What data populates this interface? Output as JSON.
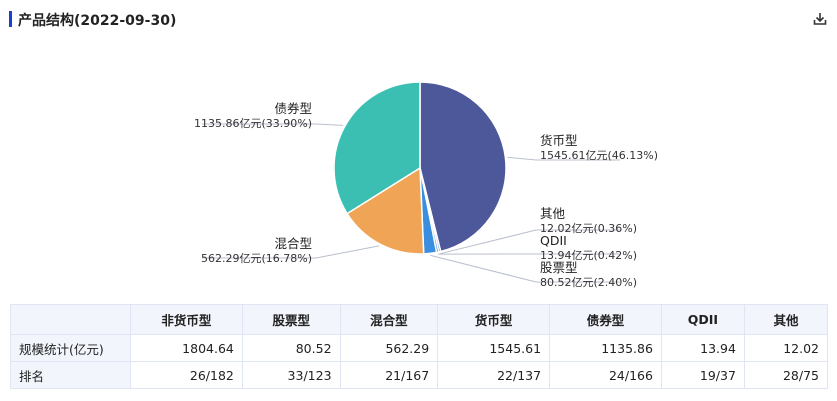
{
  "header": {
    "title": "产品结构(2022-09-30)",
    "download_icon": "download-icon",
    "accent_color": "#1b3fd1"
  },
  "chart_data": {
    "type": "pie",
    "title": "产品结构(2022-09-30)",
    "slices": [
      {
        "name": "货币型",
        "value": 1545.61,
        "percent": 46.13,
        "label": "1545.61亿元(46.13%)",
        "color": "#4c5899"
      },
      {
        "name": "其他",
        "value": 12.02,
        "percent": 0.36,
        "label": "12.02亿元(0.36%)",
        "color": "#2f4aa7"
      },
      {
        "name": "QDII",
        "value": 13.94,
        "percent": 0.42,
        "label": "13.94亿元(0.42%)",
        "color": "#3e7cd8"
      },
      {
        "name": "股票型",
        "value": 80.52,
        "percent": 2.4,
        "label": "80.52亿元(2.40%)",
        "color": "#3a8ee0"
      },
      {
        "name": "混合型",
        "value": 562.29,
        "percent": 16.78,
        "label": "562.29亿元(16.78%)",
        "color": "#f0a455"
      },
      {
        "name": "债券型",
        "value": 1135.86,
        "percent": 33.9,
        "label": "1135.86亿元(33.90%)",
        "color": "#3bbfb2"
      }
    ]
  },
  "table": {
    "corner": "",
    "columns": [
      "非货币型",
      "股票型",
      "混合型",
      "货币型",
      "债券型",
      "QDII",
      "其他"
    ],
    "rows": [
      {
        "label": "规模统计(亿元)",
        "values": [
          "1804.64",
          "80.52",
          "562.29",
          "1545.61",
          "1135.86",
          "13.94",
          "12.02"
        ]
      },
      {
        "label": "排名",
        "values": [
          "26/182",
          "33/123",
          "21/167",
          "22/137",
          "24/166",
          "19/37",
          "28/75"
        ]
      }
    ]
  }
}
